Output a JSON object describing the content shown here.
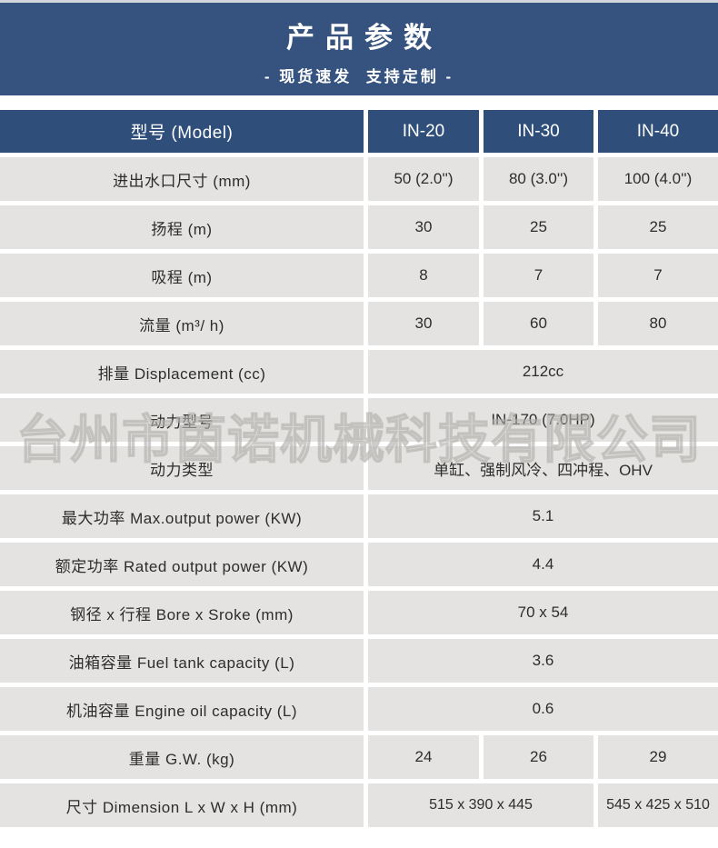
{
  "banner": {
    "title": "产品参数",
    "subtitle": "- 现货速发  支持定制 -"
  },
  "colors": {
    "banner_bg": "#35537e",
    "header_bg": "#2f4f7a",
    "row_bg": "#e4e3e1",
    "header_text": "#ffffff",
    "body_text": "#2d2d2d"
  },
  "watermark": "台州市茵诺机械科技有限公司",
  "table": {
    "header": {
      "label": "型号 (Model)",
      "columns": [
        "IN-20",
        "IN-30",
        "IN-40"
      ]
    },
    "rows": [
      {
        "label": "进出水口尺寸 (mm)",
        "type": "three",
        "values": [
          "50 (2.0'')",
          "80 (3.0'')",
          "100 (4.0'')"
        ]
      },
      {
        "label": "扬程 (m)",
        "type": "three",
        "values": [
          "30",
          "25",
          "25"
        ]
      },
      {
        "label": "吸程 (m)",
        "type": "three",
        "values": [
          "8",
          "7",
          "7"
        ]
      },
      {
        "label": "流量 (m³/ h)",
        "type": "three",
        "values": [
          "30",
          "60",
          "80"
        ]
      },
      {
        "label": "排量 Displacement (cc)",
        "type": "span",
        "values": [
          "212cc"
        ]
      },
      {
        "label": "动力型号",
        "type": "span",
        "values": [
          "IN-170 (7.0HP)"
        ]
      },
      {
        "label": "动力类型",
        "type": "span",
        "values": [
          "单缸、强制风冷、四冲程、OHV"
        ]
      },
      {
        "label": "最大功率 Max.output power (KW)",
        "type": "span",
        "values": [
          "5.1"
        ]
      },
      {
        "label": "额定功率 Rated output power (KW)",
        "type": "span",
        "values": [
          "4.4"
        ]
      },
      {
        "label": "钢径 x 行程 Bore x Sroke (mm)",
        "type": "span",
        "values": [
          "70 x 54"
        ]
      },
      {
        "label": "油箱容量 Fuel tank capacity (L)",
        "type": "span",
        "values": [
          "3.6"
        ]
      },
      {
        "label": "机油容量 Engine oil capacity (L)",
        "type": "span",
        "values": [
          "0.6"
        ]
      },
      {
        "label": "重量 G.W. (kg)",
        "type": "three",
        "values": [
          "24",
          "26",
          "29"
        ]
      },
      {
        "label": "尺寸 Dimension L x W x H (mm)",
        "type": "two",
        "values": [
          "515 x 390 x 445",
          "545 x 425 x 510"
        ]
      }
    ]
  }
}
